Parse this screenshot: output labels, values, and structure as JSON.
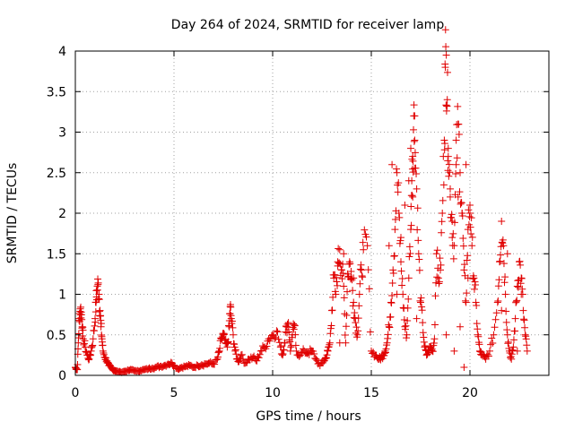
{
  "chart_data": {
    "type": "scatter",
    "title": "Day 264 of 2024, SRMTID for receiver lamp",
    "xlabel": "GPS time / hours",
    "ylabel": "SRMTID / TECUs",
    "xlim": [
      0,
      24
    ],
    "ylim": [
      0,
      4
    ],
    "xticks": [
      0,
      5,
      10,
      15,
      20
    ],
    "yticks": [
      0,
      0.5,
      1,
      1.5,
      2,
      2.5,
      3,
      3.5,
      4
    ],
    "xtick_labels": [
      "0",
      "5",
      "10",
      "15",
      "20"
    ],
    "ytick_labels": [
      "0",
      "0.5",
      "1",
      "1.5",
      "2",
      "2.5",
      "3",
      "3.5",
      "4"
    ],
    "grid": true,
    "marker": "+",
    "color": "#e00000",
    "series": [
      {
        "name": "SRMTID",
        "x": [
          0.0,
          0.05,
          0.1,
          0.15,
          0.2,
          0.25,
          0.3,
          0.35,
          0.4,
          0.5,
          0.6,
          0.7,
          0.8,
          0.9,
          1.0,
          1.05,
          1.1,
          1.15,
          1.2,
          1.25,
          1.3,
          1.35,
          1.4,
          1.5,
          1.6,
          1.7,
          1.8,
          1.9,
          2.0,
          2.1,
          2.3,
          2.5,
          2.7,
          2.9,
          3.1,
          3.3,
          3.5,
          3.7,
          3.9,
          4.1,
          4.3,
          4.5,
          4.7,
          4.9,
          5.0,
          5.2,
          5.4,
          5.6,
          5.8,
          6.0,
          6.2,
          6.4,
          6.6,
          6.8,
          7.0,
          7.2,
          7.3,
          7.4,
          7.5,
          7.6,
          7.7,
          7.8,
          7.85,
          7.9,
          8.0,
          8.1,
          8.2,
          8.3,
          8.4,
          8.6,
          8.8,
          9.0,
          9.2,
          9.4,
          9.6,
          9.8,
          10.0,
          10.2,
          10.4,
          10.5,
          10.6,
          10.7,
          10.8,
          10.9,
          11.0,
          11.1,
          11.2,
          11.4,
          11.6,
          11.8,
          12.0,
          12.2,
          12.4,
          12.6,
          12.7,
          12.8,
          12.9,
          13.0,
          13.1,
          13.2,
          13.3,
          13.4,
          13.5,
          13.6,
          13.7,
          13.8,
          13.9,
          14.0,
          14.1,
          14.2,
          14.3,
          14.4,
          14.5,
          14.6,
          14.8,
          15.0,
          15.2,
          15.4,
          15.5,
          15.6,
          15.7,
          15.8,
          15.9,
          16.0,
          16.1,
          16.2,
          16.3,
          16.4,
          16.5,
          16.6,
          16.7,
          16.8,
          16.9,
          17.0,
          17.05,
          17.1,
          17.15,
          17.2,
          17.3,
          17.4,
          17.5,
          17.6,
          17.7,
          17.8,
          17.9,
          18.0,
          18.1,
          18.2,
          18.3,
          18.4,
          18.5,
          18.6,
          18.7,
          18.75,
          18.8,
          18.85,
          18.9,
          19.0,
          19.1,
          19.2,
          19.3,
          19.4,
          19.5,
          19.6,
          19.7,
          19.8,
          19.9,
          20.0,
          20.1,
          20.2,
          20.3,
          20.4,
          20.5,
          20.6,
          20.8,
          21.0,
          21.2,
          21.4,
          21.5,
          21.6,
          21.7,
          21.8,
          21.9,
          22.0,
          22.1,
          22.2,
          22.3,
          22.4,
          22.5,
          22.6,
          22.7,
          22.8,
          22.9
        ],
        "y": [
          0.1,
          0.08,
          0.07,
          0.4,
          0.7,
          0.82,
          0.78,
          0.6,
          0.45,
          0.35,
          0.25,
          0.2,
          0.3,
          0.45,
          0.7,
          0.9,
          1.05,
          1.12,
          1.0,
          0.8,
          0.6,
          0.45,
          0.3,
          0.22,
          0.18,
          0.12,
          0.1,
          0.07,
          0.06,
          0.05,
          0.04,
          0.05,
          0.06,
          0.07,
          0.05,
          0.06,
          0.07,
          0.08,
          0.09,
          0.1,
          0.11,
          0.12,
          0.14,
          0.15,
          0.12,
          0.08,
          0.1,
          0.11,
          0.12,
          0.1,
          0.12,
          0.13,
          0.14,
          0.15,
          0.14,
          0.2,
          0.3,
          0.45,
          0.5,
          0.4,
          0.35,
          0.6,
          0.85,
          0.7,
          0.5,
          0.3,
          0.2,
          0.18,
          0.25,
          0.15,
          0.2,
          0.22,
          0.18,
          0.3,
          0.35,
          0.45,
          0.5,
          0.55,
          0.35,
          0.25,
          0.4,
          0.6,
          0.65,
          0.3,
          0.5,
          0.62,
          0.3,
          0.25,
          0.3,
          0.28,
          0.3,
          0.2,
          0.12,
          0.18,
          0.22,
          0.3,
          0.4,
          0.8,
          1.2,
          1.0,
          1.35,
          1.55,
          1.3,
          1.1,
          0.4,
          1.25,
          1.4,
          1.2,
          0.9,
          0.65,
          0.5,
          1.0,
          1.3,
          1.55,
          1.6,
          0.3,
          0.25,
          0.2,
          0.22,
          0.25,
          0.3,
          0.4,
          0.6,
          0.9,
          1.3,
          1.8,
          2.5,
          2.0,
          1.4,
          1.0,
          0.6,
          0.5,
          1.2,
          1.8,
          2.4,
          2.7,
          3.2,
          2.9,
          2.3,
          1.5,
          0.9,
          0.65,
          0.35,
          0.25,
          0.3,
          0.35,
          0.3,
          0.45,
          1.5,
          1.2,
          1.3,
          2.0,
          2.9,
          3.8,
          3.95,
          3.4,
          2.8,
          2.3,
          1.9,
          1.6,
          2.6,
          3.1,
          2.5,
          2.0,
          1.3,
          0.9,
          1.8,
          2.1,
          1.6,
          1.2,
          0.9,
          0.5,
          0.3,
          0.25,
          0.2,
          0.3,
          0.5,
          0.9,
          1.4,
          1.9,
          1.6,
          1.0,
          0.5,
          0.3,
          0.2,
          0.35,
          0.7,
          1.1,
          1.4,
          1.2,
          0.8,
          0.5,
          0.3
        ],
        "overlay_x": [
          13.3,
          13.4,
          13.6,
          14.1,
          15.9,
          16.05,
          16.3,
          16.5,
          16.7,
          16.9,
          17.0,
          17.1,
          17.2,
          17.3,
          18.8,
          18.9,
          19.0,
          19.1,
          19.2,
          19.3,
          19.4,
          19.5,
          19.6,
          19.7,
          19.8,
          19.9,
          20.0,
          21.6,
          21.9,
          22.4,
          22.6
        ],
        "overlay_y": [
          1.4,
          0.4,
          1.5,
          1.2,
          1.6,
          2.6,
          1.0,
          1.7,
          2.1,
          2.4,
          2.8,
          2.2,
          3.2,
          0.7,
          0.5,
          2.7,
          2.2,
          1.7,
          0.3,
          2.9,
          2.2,
          0.6,
          2.0,
          0.1,
          2.6,
          1.2,
          2.0,
          0.8,
          1.5,
          0.3,
          1.0
        ]
      }
    ]
  }
}
